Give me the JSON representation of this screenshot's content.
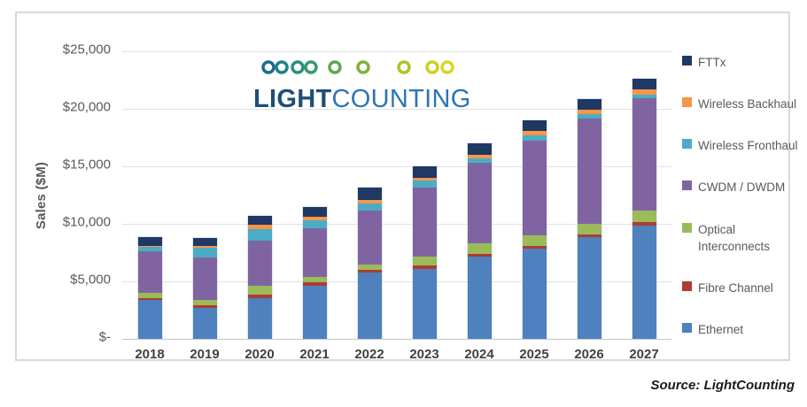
{
  "y_axis": {
    "title": "Sales ($M)",
    "ticks": [
      "$25,000",
      "$20,000",
      "$15,000",
      "$10,000",
      "$5,000",
      "$-"
    ]
  },
  "logo": {
    "light": "LIGHT",
    "counting": "COUNTING"
  },
  "source_note": "Source: LightCounting",
  "chart_data": {
    "type": "bar",
    "stacked": true,
    "title": "",
    "xlabel": "",
    "ylabel": "Sales ($M)",
    "ylim": [
      0,
      25000
    ],
    "grid": true,
    "legend_position": "right",
    "categories": [
      "2018",
      "2019",
      "2020",
      "2021",
      "2022",
      "2023",
      "2024",
      "2025",
      "2026",
      "2027"
    ],
    "series": [
      {
        "name": "Ethernet",
        "color": "#4E81BD",
        "values": [
          3350,
          2700,
          3550,
          4650,
          5750,
          6100,
          7130,
          7820,
          8850,
          9870
        ]
      },
      {
        "name": "Fibre Channel",
        "color": "#AE3B34",
        "values": [
          200,
          250,
          300,
          250,
          250,
          250,
          250,
          250,
          250,
          250
        ]
      },
      {
        "name": "Optical Interconnects",
        "color": "#9BBB59",
        "values": [
          430,
          400,
          770,
          500,
          460,
          770,
          900,
          900,
          900,
          1020
        ]
      },
      {
        "name": "CWDM / DWDM",
        "color": "#8064A2",
        "values": [
          3670,
          3700,
          3950,
          4200,
          4720,
          6020,
          7000,
          8280,
          9120,
          9790
        ]
      },
      {
        "name": "Wireless Fronthaul",
        "color": "#4BACC6",
        "values": [
          350,
          900,
          1000,
          700,
          590,
          600,
          450,
          420,
          430,
          330
        ]
      },
      {
        "name": "Wireless Backhaul",
        "color": "#F79646",
        "values": [
          100,
          150,
          380,
          330,
          330,
          300,
          300,
          400,
          400,
          440
        ]
      },
      {
        "name": "FTTx",
        "color": "#1F3864",
        "values": [
          720,
          700,
          770,
          820,
          1020,
          950,
          1000,
          900,
          900,
          920
        ]
      }
    ],
    "totals": [
      8820,
      8800,
      10720,
      11450,
      13120,
      14990,
      17030,
      18970,
      20850,
      22620
    ],
    "legend_order_top_to_bottom": [
      "FTTx",
      "Wireless Backhaul",
      "Wireless Fronthaul",
      "CWDM / DWDM",
      "Optical Interconnects",
      "Fibre Channel",
      "Ethernet"
    ]
  }
}
